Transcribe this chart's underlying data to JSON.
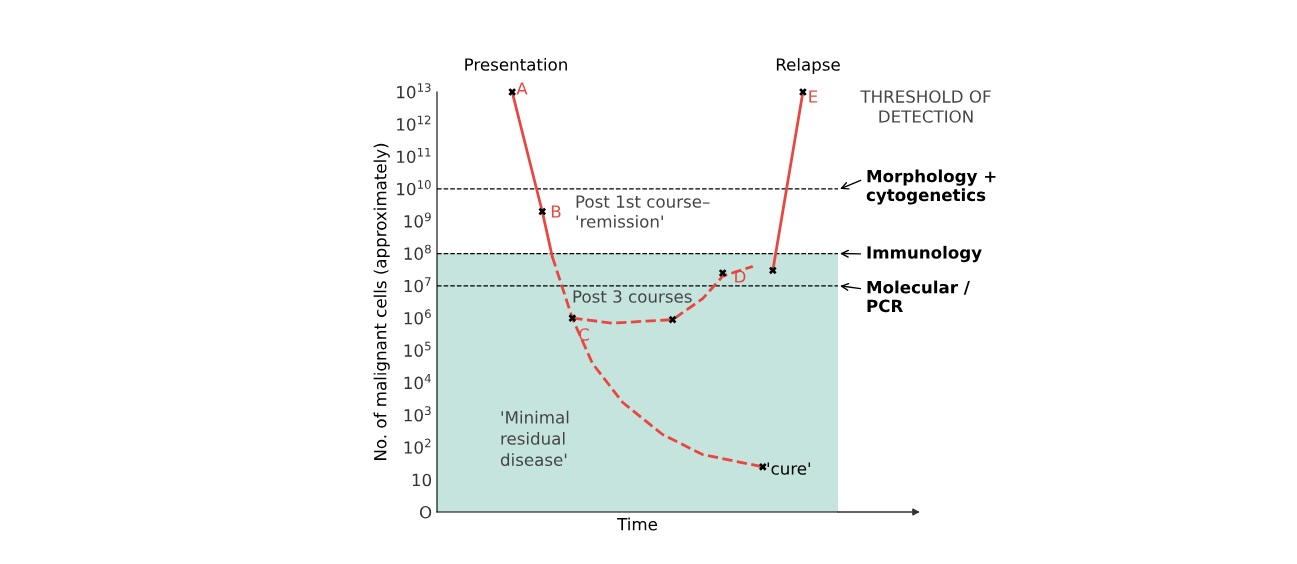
{
  "chart_data": {
    "type": "line",
    "xlabel": "Time",
    "ylabel": "No. of malignant cells (approximately)",
    "categories": [
      null,
      null,
      null,
      null,
      null,
      null,
      null,
      null,
      null,
      null,
      null,
      null,
      null,
      null,
      null,
      null,
      null,
      null,
      null,
      null,
      null,
      null,
      null,
      null,
      null,
      null,
      null,
      null,
      null,
      null,
      null,
      null,
      null,
      null,
      null,
      null,
      null,
      null,
      null,
      null
    ],
    "log": true,
    "ylim": [
      1,
      10000000000000.0
    ],
    "yticks": [
      {
        "value": 1,
        "label": "O"
      },
      10,
      {
        "value": 100,
        "label": "10$^{2}$"
      },
      {
        "value": 1000.0,
        "label": "10$^{3}$"
      },
      {
        "value": 10000.0,
        "label": "10$^{4}$"
      },
      {
        "value": 100000.0,
        "label": "10$^{5}$"
      },
      {
        "value": 1000000.0,
        "label": "10$^{6}$"
      },
      {
        "value": 10000000.0,
        "label": "10$^{7}$"
      },
      {
        "value": 100000000.0,
        "label": "10$^{8}$"
      },
      {
        "value": 1000000000.0,
        "label": "10$^{9}$"
      },
      {
        "value": 10000000000.0,
        "label": "10$^{10}$"
      },
      {
        "value": 100000000000.0,
        "label": "10$^{11}$"
      },
      {
        "value": 1000000000000.0,
        "label": "10$^{12}$"
      },
      {
        "value": 10000000000000.0,
        "label": "10$^{13}$"
      }
    ],
    "tick_labels": "y",
    "grid": false,
    "series": [
      {
        "color": "#e8463f",
        "line_style": "solid",
        "values": [
          null,
          null,
          null,
          null,
          null,
          null,
          null,
          10000000000000.0,
          null,
          null,
          2000000000.0,
          80000000.0,
          null,
          null,
          null,
          null,
          null,
          null,
          null,
          null,
          null,
          null,
          null,
          null,
          null,
          null,
          null,
          null,
          null,
          null,
          null,
          null,
          null,
          null,
          null,
          null,
          null,
          null,
          null,
          null
        ]
      },
      {
        "color": "#e8463f",
        "line_style": "dashed",
        "values": [
          null,
          null,
          null,
          null,
          null,
          null,
          null,
          null,
          null,
          null,
          null,
          80000000.0,
          null,
          1000000.0,
          null,
          40000.0,
          null,
          null,
          2500,
          null,
          null,
          null,
          250,
          null,
          null,
          null,
          60,
          null,
          null,
          null,
          null,
          null,
          25,
          null,
          null,
          null,
          null,
          null,
          null,
          null
        ]
      },
      {
        "color": "#e8463f",
        "line_style": "dashed",
        "values": [
          null,
          null,
          null,
          null,
          null,
          null,
          null,
          null,
          null,
          null,
          null,
          null,
          null,
          1000000.0,
          null,
          null,
          null,
          700000.0,
          null,
          null,
          null,
          null,
          null,
          900000.0,
          null,
          null,
          4000000.0,
          null,
          20000000.0,
          null,
          null,
          40000000.0,
          null,
          null,
          null,
          null,
          null,
          null,
          null,
          null
        ]
      },
      {
        "color": "#e8463f",
        "line_style": "solid",
        "values": [
          null,
          null,
          null,
          null,
          null,
          null,
          null,
          null,
          null,
          null,
          null,
          null,
          null,
          null,
          null,
          null,
          null,
          null,
          null,
          null,
          null,
          null,
          null,
          null,
          null,
          null,
          null,
          null,
          null,
          null,
          null,
          null,
          null,
          30000000.0,
          null,
          null,
          10000000000000.0,
          null,
          null,
          null
        ]
      },
      {
        "type": "scatter",
        "color": "#000000",
        "marker": "cross",
        "values": [
          null,
          null,
          null,
          null,
          null,
          null,
          null,
          10000000000000.0,
          null,
          null,
          2000000000.0,
          null,
          null,
          1000000.0,
          null,
          null,
          null,
          null,
          null,
          null,
          null,
          null,
          null,
          900000.0,
          null,
          null,
          null,
          null,
          25000000.0,
          null,
          null,
          null,
          25,
          30000000.0,
          null,
          null,
          10000000000000.0,
          null,
          null,
          null
        ]
      }
    ],
    "ref_lines": [
      {
        "axis": "y",
        "value": 10000000000.0,
        "label": "Morphology +\ncytogenetics",
        "color": "#000000",
        "line_style": "dashed"
      },
      {
        "axis": "y",
        "value": 100000000.0,
        "label": "Immunology",
        "color": "#000000",
        "line_style": "dashed"
      },
      {
        "axis": "y",
        "value": 10000000.0,
        "label": "Molecular /\nPCR",
        "color": "#000000",
        "line_style": "dashed"
      }
    ],
    "bands": [
      {
        "axis": "y",
        "from": 1,
        "to": 100000000.0,
        "label": "'Minimal\nresidual\ndisease'",
        "color": "#c5e4dd"
      }
    ],
    "annotations": [
      "Presentation",
      "Relapse",
      "THRESHOLD OF\nDETECTION",
      "Post 1st course–\n'remission'",
      "Post 3 courses",
      "'cure'",
      "A",
      "B",
      "C",
      "D",
      "E"
    ]
  }
}
